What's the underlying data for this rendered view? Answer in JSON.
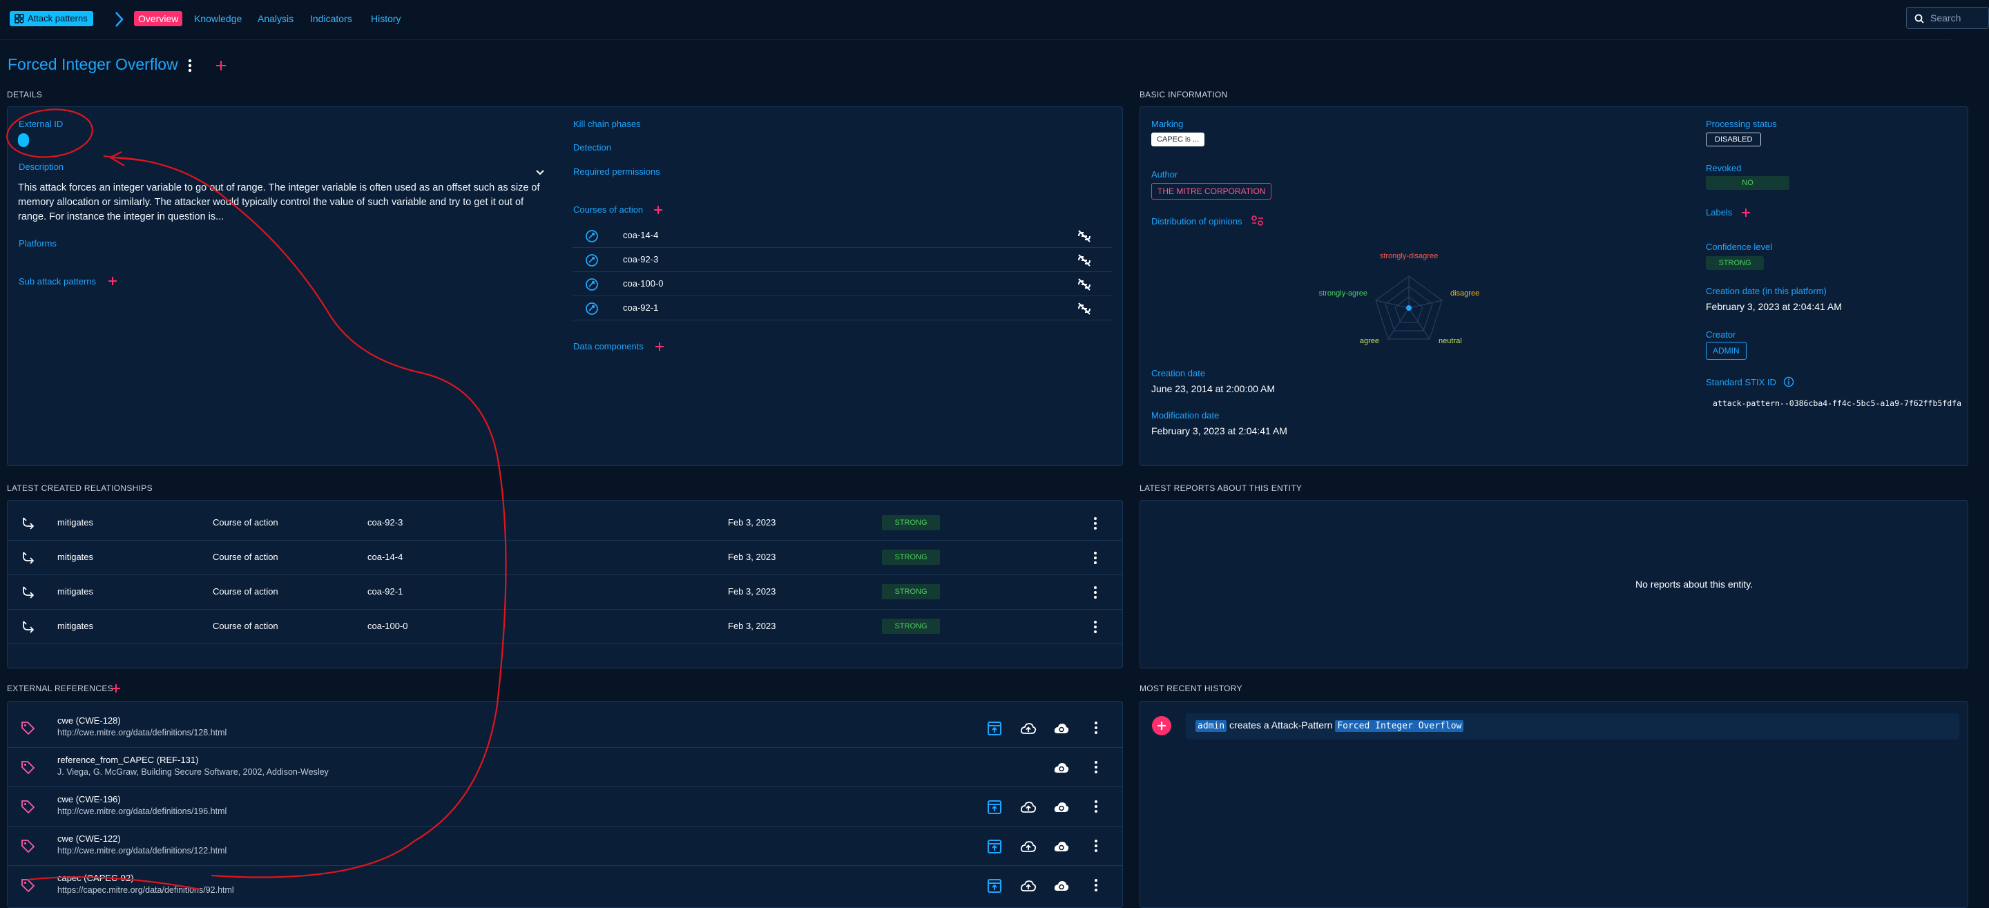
{
  "topbar": {
    "entity_button": "Attack patterns",
    "tabs": [
      {
        "label": "Overview"
      },
      {
        "label": "Knowledge"
      },
      {
        "label": "Analysis"
      },
      {
        "label": "Indicators"
      },
      {
        "label": "History"
      }
    ],
    "search_placeholder": "Search"
  },
  "title": "Forced Integer Overflow",
  "details": {
    "section_title": "DETAILS",
    "external_id_label": "External ID",
    "description_label": "Description",
    "description": "This attack forces an integer variable to go out of range. The integer variable is often used as an offset such as size of memory allocation or similarly. The attacker would typically control the value of such variable and try to get it out of range. For instance the integer in question is...",
    "platforms_label": "Platforms",
    "sub_attack_patterns_label": "Sub attack patterns",
    "kill_chain_label": "Kill chain phases",
    "detection_label": "Detection",
    "required_permissions_label": "Required permissions",
    "courses_of_action_label": "Courses of action",
    "courses_of_action": [
      "coa-14-4",
      "coa-92-3",
      "coa-100-0",
      "coa-92-1"
    ],
    "data_components_label": "Data components"
  },
  "basic": {
    "section_title": "BASIC INFORMATION",
    "marking_label": "Marking",
    "marking_value": "CAPEC is ...",
    "author_label": "Author",
    "author_value": "THE MITRE CORPORATION",
    "opinions_label": "Distribution of opinions",
    "radar_labels": {
      "strongly_disagree": "strongly-disagree",
      "disagree": "disagree",
      "neutral": "neutral",
      "agree": "agree",
      "strongly_agree": "strongly-agree"
    },
    "creation_date_label": "Creation date",
    "creation_date": "June 23, 2014 at 2:00:00 AM",
    "modification_date_label": "Modification date",
    "modification_date": "February 3, 2023 at 2:04:41 AM",
    "processing_status_label": "Processing status",
    "processing_status": "DISABLED",
    "revoked_label": "Revoked",
    "revoked": "NO",
    "labels_label": "Labels",
    "confidence_label": "Confidence level",
    "confidence": "STRONG",
    "platform_creation_label": "Creation date (in this platform)",
    "platform_creation": "February 3, 2023 at 2:04:41 AM",
    "creator_label": "Creator",
    "creator": "ADMIN",
    "stix_label": "Standard STIX ID",
    "stix_id": "attack-pattern--0386cba4-ff4c-5bc5-a1a9-7f62ffb5fdfa"
  },
  "relationships": {
    "section_title": "LATEST CREATED RELATIONSHIPS",
    "rows": [
      {
        "type": "mitigates",
        "entity_type": "Course of action",
        "name": "coa-92-3",
        "date": "Feb 3, 2023",
        "confidence": "STRONG"
      },
      {
        "type": "mitigates",
        "entity_type": "Course of action",
        "name": "coa-14-4",
        "date": "Feb 3, 2023",
        "confidence": "STRONG"
      },
      {
        "type": "mitigates",
        "entity_type": "Course of action",
        "name": "coa-92-1",
        "date": "Feb 3, 2023",
        "confidence": "STRONG"
      },
      {
        "type": "mitigates",
        "entity_type": "Course of action",
        "name": "coa-100-0",
        "date": "Feb 3, 2023",
        "confidence": "STRONG"
      }
    ]
  },
  "reports": {
    "section_title": "LATEST REPORTS ABOUT THIS ENTITY",
    "empty_text": "No reports about this entity."
  },
  "references": {
    "section_title": "EXTERNAL REFERENCES",
    "rows": [
      {
        "name": "cwe (CWE-128)",
        "url": "http://cwe.mitre.org/data/definitions/128.html"
      },
      {
        "name": "reference_from_CAPEC (REF-131)",
        "url": "J. Viega, G. McGraw, Building Secure Software, 2002, Addison-Wesley"
      },
      {
        "name": "cwe (CWE-196)",
        "url": "http://cwe.mitre.org/data/definitions/196.html"
      },
      {
        "name": "cwe (CWE-122)",
        "url": "http://cwe.mitre.org/data/definitions/122.html"
      },
      {
        "name": "capec (CAPEC-92)",
        "url": "https://capec.mitre.org/data/definitions/92.html"
      }
    ]
  },
  "history": {
    "section_title": "MOST RECENT HISTORY",
    "user": "admin",
    "action": "creates a Attack-Pattern",
    "entity": "Forced Integer Overflow"
  },
  "colors": {
    "background": "#071426",
    "panel": "#0a1e38",
    "accent_blue": "#1fa6ff",
    "accent_pink": "#ff2f6e",
    "annotation_red": "#e0141e"
  }
}
